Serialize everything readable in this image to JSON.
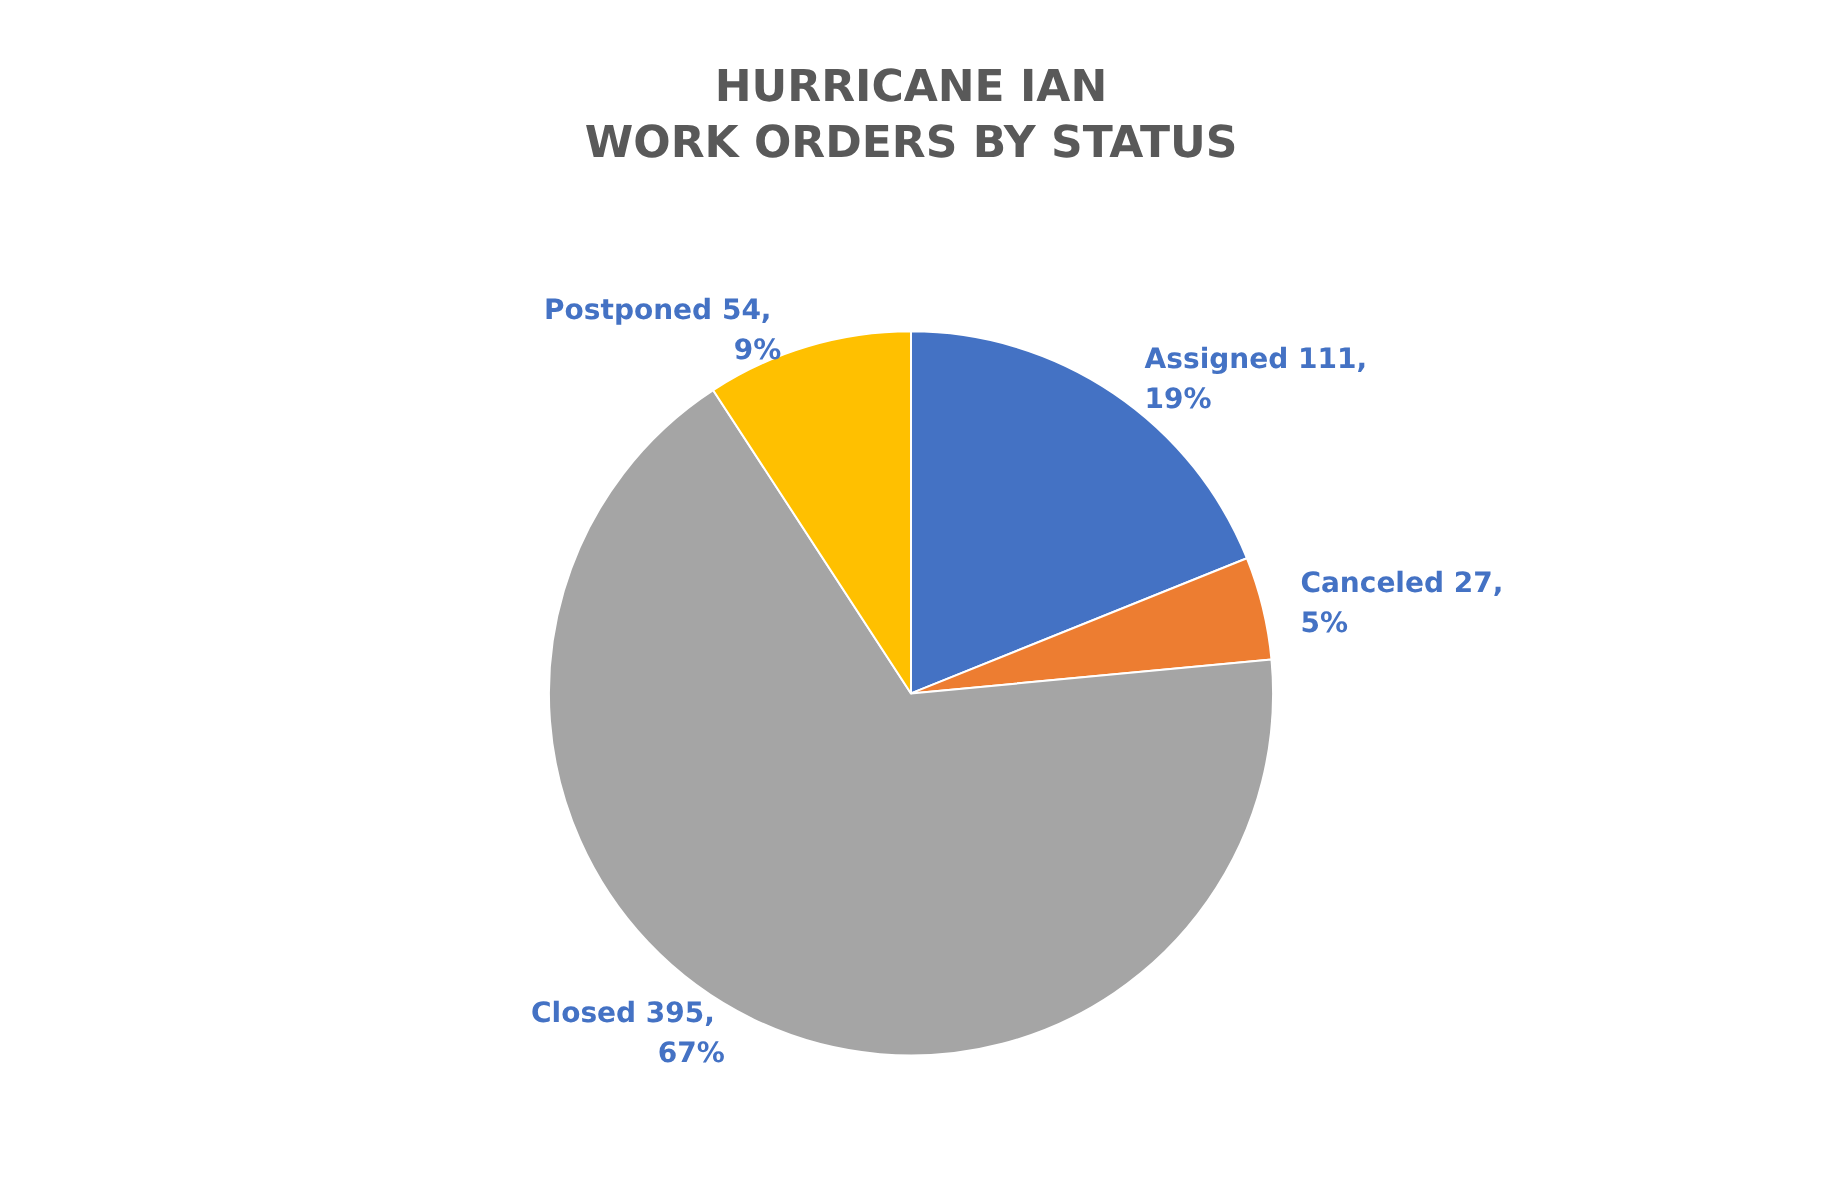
{
  "chart_data": {
    "type": "pie",
    "title": "HURRICANE IAN",
    "subtitle": "WORK ORDERS BY STATUS",
    "categories": [
      "Assigned",
      "Canceled",
      "Closed",
      "Postponed"
    ],
    "values": [
      111,
      27,
      395,
      54
    ],
    "colors": [
      "#4472c4",
      "#ed7d31",
      "#a5a5a5",
      "#ffc000"
    ],
    "value_labels": [
      "111, 19%",
      "27, 5%",
      "395, 67%",
      "54, 9%"
    ]
  }
}
